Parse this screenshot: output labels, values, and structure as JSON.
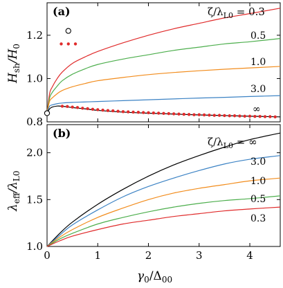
{
  "figure": {
    "x_ticks": [
      "0",
      "1",
      "2",
      "3",
      "4"
    ],
    "x_label_base": "γ",
    "x_label_sub1": "0",
    "x_label_mid": "/Δ",
    "x_label_sub2": "00"
  },
  "panels": [
    {
      "tag": "(a)",
      "y_label_main": "H",
      "y_label_sub1": "sh",
      "y_label_mid": "/H",
      "y_label_sub2": "0",
      "legend_head_prefix": "ζ/λ",
      "legend_head_sub": "L0",
      "legend_head_eq": " = 0.3",
      "curve_labels": [
        "0.5",
        "1.0",
        "3.0",
        "∞"
      ],
      "y_ticks": [
        "0.8",
        "1.0",
        "1.2"
      ]
    },
    {
      "tag": "(b)",
      "y_label_main": "λ",
      "y_label_sub1": "eff",
      "y_label_mid": "/λ",
      "y_label_sub2": "L0",
      "legend_head_prefix": "ζ/λ",
      "legend_head_sub": "L0",
      "legend_head_eq": " = ∞",
      "curve_labels": [
        "3.0",
        "1.0",
        "0.5",
        "0.3"
      ],
      "y_ticks": [
        "1.0",
        "1.5",
        "2.0"
      ]
    }
  ],
  "colors": {
    "inf": "#000000",
    "3.0": "#3b82c4",
    "1.0": "#f28c1c",
    "0.5": "#4cae4c",
    "0.3": "#e02b2b",
    "dots": "#e02b2b"
  },
  "chart_data": [
    {
      "type": "line",
      "ylabel": "Hsh/H0",
      "xlabel": "γ0/Δ00",
      "xlim": [
        0,
        4.6
      ],
      "ylim": [
        0.8,
        1.35
      ],
      "series": [
        {
          "name": "0.3",
          "x": [
            0,
            0.05,
            0.1,
            0.2,
            0.3,
            0.5,
            0.75,
            1.0,
            1.5,
            2.0,
            2.5,
            3.0,
            3.5,
            4.0,
            4.6
          ],
          "y": [
            0.84,
            0.93,
            0.96,
            1.0,
            1.03,
            1.07,
            1.1,
            1.125,
            1.165,
            1.2,
            1.23,
            1.255,
            1.28,
            1.3,
            1.325
          ]
        },
        {
          "name": "0.5",
          "x": [
            0,
            0.05,
            0.1,
            0.2,
            0.3,
            0.5,
            0.75,
            1.0,
            1.5,
            2.0,
            2.5,
            3.0,
            3.5,
            4.0,
            4.6
          ],
          "y": [
            0.84,
            0.91,
            0.935,
            0.965,
            0.99,
            1.02,
            1.045,
            1.065,
            1.09,
            1.11,
            1.13,
            1.145,
            1.16,
            1.17,
            1.185
          ]
        },
        {
          "name": "1.0",
          "x": [
            0,
            0.05,
            0.1,
            0.2,
            0.3,
            0.5,
            0.75,
            1.0,
            1.5,
            2.0,
            2.5,
            3.0,
            3.5,
            4.0,
            4.6
          ],
          "y": [
            0.84,
            0.895,
            0.91,
            0.93,
            0.945,
            0.962,
            0.977,
            0.99,
            1.005,
            1.018,
            1.028,
            1.036,
            1.043,
            1.049,
            1.056
          ]
        },
        {
          "name": "3.0",
          "x": [
            0,
            0.05,
            0.1,
            0.2,
            0.3,
            0.5,
            0.75,
            1.0,
            1.5,
            2.0,
            2.5,
            3.0,
            3.5,
            4.0,
            4.6
          ],
          "y": [
            0.84,
            0.872,
            0.878,
            0.884,
            0.887,
            0.89,
            0.892,
            0.894,
            0.898,
            0.902,
            0.906,
            0.91,
            0.913,
            0.917,
            0.921
          ]
        },
        {
          "name": "∞",
          "x": [
            0,
            0.05,
            0.1,
            0.2,
            0.3,
            0.5,
            0.75,
            1.0,
            1.5,
            2.0,
            2.5,
            3.0,
            3.5,
            4.0,
            4.6
          ],
          "y": [
            0.84,
            0.86,
            0.868,
            0.873,
            0.872,
            0.866,
            0.86,
            0.853,
            0.845,
            0.84,
            0.836,
            0.832,
            0.829,
            0.826,
            0.823
          ]
        }
      ],
      "dots": {
        "x": [
          0.3,
          0.4,
          0.5,
          0.6,
          0.7,
          0.8,
          0.9,
          1.0,
          1.1,
          1.2,
          1.3,
          1.4,
          1.5,
          1.6,
          1.7,
          1.8,
          1.9,
          2.0,
          2.1,
          2.2,
          2.3,
          2.4,
          2.5,
          2.6,
          2.7,
          2.8,
          2.9,
          3.0,
          3.1,
          3.2,
          3.3,
          3.4,
          3.5,
          3.6,
          3.7,
          3.8,
          3.9,
          4.0,
          4.1,
          4.2,
          4.3,
          4.4,
          4.5
        ],
        "y": [
          0.872,
          0.871,
          0.868,
          0.866,
          0.863,
          0.861,
          0.858,
          0.856,
          0.854,
          0.852,
          0.851,
          0.849,
          0.847,
          0.846,
          0.845,
          0.844,
          0.843,
          0.842,
          0.841,
          0.84,
          0.839,
          0.838,
          0.837,
          0.836,
          0.835,
          0.834,
          0.833,
          0.833,
          0.832,
          0.831,
          0.83,
          0.83,
          0.829,
          0.828,
          0.828,
          0.827,
          0.826,
          0.826,
          0.825,
          0.825,
          0.824,
          0.824,
          0.823
        ]
      },
      "open_circles": [
        {
          "x": 0,
          "y": 0.84
        },
        {
          "x": 0.42,
          "y": 1.22
        }
      ],
      "red_dot_legend": {
        "x": [
          0.28,
          0.42,
          0.56
        ],
        "y": 1.16
      }
    },
    {
      "type": "line",
      "ylabel": "λeff/λL0",
      "xlabel": "γ0/Δ00",
      "xlim": [
        0,
        4.6
      ],
      "ylim": [
        1.0,
        2.3
      ],
      "series": [
        {
          "name": "∞",
          "x": [
            0,
            0.25,
            0.5,
            1.0,
            1.5,
            2.0,
            2.5,
            3.0,
            3.5,
            4.0,
            4.6
          ],
          "y": [
            1.0,
            1.14,
            1.26,
            1.45,
            1.61,
            1.75,
            1.87,
            1.97,
            2.06,
            2.14,
            2.21
          ]
        },
        {
          "name": "3.0",
          "x": [
            0,
            0.25,
            0.5,
            1.0,
            1.5,
            2.0,
            2.5,
            3.0,
            3.5,
            4.0,
            4.6
          ],
          "y": [
            1.0,
            1.12,
            1.23,
            1.39,
            1.53,
            1.64,
            1.73,
            1.81,
            1.88,
            1.93,
            1.97
          ]
        },
        {
          "name": "1.0",
          "x": [
            0,
            0.25,
            0.5,
            1.0,
            1.5,
            2.0,
            2.5,
            3.0,
            3.5,
            4.0,
            4.6
          ],
          "y": [
            1.0,
            1.1,
            1.18,
            1.31,
            1.41,
            1.5,
            1.57,
            1.62,
            1.66,
            1.7,
            1.73
          ]
        },
        {
          "name": "0.5",
          "x": [
            0,
            0.25,
            0.5,
            1.0,
            1.5,
            2.0,
            2.5,
            3.0,
            3.5,
            4.0,
            4.6
          ],
          "y": [
            1.0,
            1.08,
            1.14,
            1.24,
            1.31,
            1.37,
            1.42,
            1.46,
            1.49,
            1.51,
            1.54
          ]
        },
        {
          "name": "0.3",
          "x": [
            0,
            0.25,
            0.5,
            1.0,
            1.5,
            2.0,
            2.5,
            3.0,
            3.5,
            4.0,
            4.6
          ],
          "y": [
            1.0,
            1.06,
            1.11,
            1.18,
            1.24,
            1.28,
            1.32,
            1.35,
            1.38,
            1.4,
            1.42
          ]
        }
      ]
    }
  ]
}
